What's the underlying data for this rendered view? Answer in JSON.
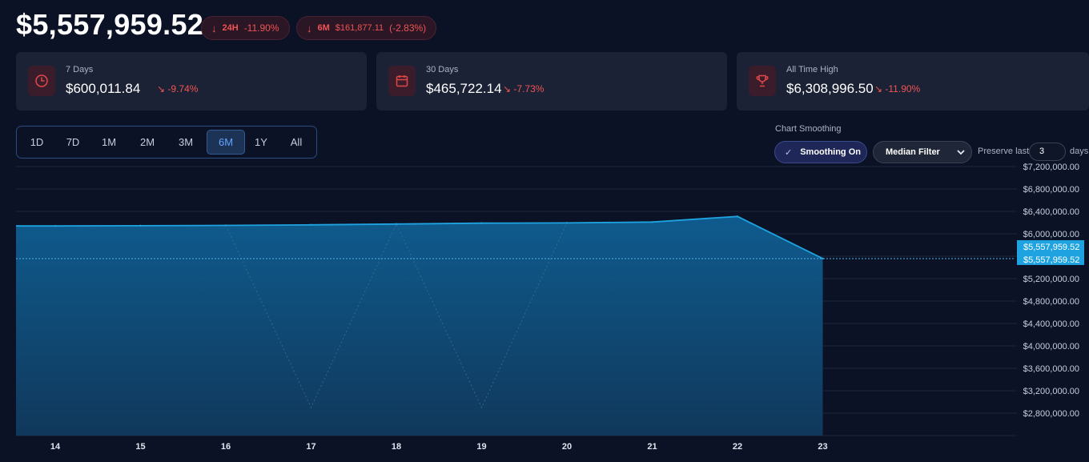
{
  "header": {
    "total_value": "$5,557,959.52",
    "pills": [
      {
        "arrow": "↓",
        "label": "24H",
        "amount": "",
        "change": "-11.90%"
      },
      {
        "arrow": "↓",
        "label": "6M",
        "amount": "$161,877.11",
        "change": "(-2.83%)"
      }
    ]
  },
  "cards": [
    {
      "title": "7 Days",
      "value": "$600,011.84",
      "trend": "↘",
      "change": "-9.74%",
      "icon": "clock-icon"
    },
    {
      "title": "30 Days",
      "value": "$465,722.14",
      "trend": "↘",
      "change": "-7.73%",
      "icon": "calendar-icon"
    },
    {
      "title": "All Time High",
      "value": "$6,308,996.50",
      "trend": "↘",
      "change": "-11.90%",
      "icon": "trophy-icon"
    }
  ],
  "ranges": {
    "options": [
      "1D",
      "7D",
      "1M",
      "2M",
      "3M",
      "6M",
      "1Y",
      "All"
    ],
    "active": "6M"
  },
  "smoothing": {
    "title": "Chart Smoothing",
    "toggle_check": "✓",
    "toggle_label": "Smoothing On",
    "filter": "Median Filter",
    "preserve_label": "Preserve last",
    "preserve_value": "3",
    "days_label": "days"
  },
  "colors": {
    "accent": "#1fa3e0",
    "negative": "#f05454",
    "active_range": "#63a3ff",
    "background": "#0b1225"
  },
  "chart_data": {
    "type": "area",
    "x": [
      "14",
      "15",
      "16",
      "17",
      "18",
      "19",
      "20",
      "21",
      "22",
      "23"
    ],
    "series": [
      {
        "values": [
          6140000,
          6145000,
          6150000,
          6160000,
          6175000,
          6190000,
          6195000,
          6210000,
          6310000,
          5557959.52
        ]
      },
      {
        "values": [
          null,
          null,
          6150000,
          2900000,
          6175000,
          2900000,
          6195000,
          null,
          null,
          null
        ]
      }
    ],
    "y_ticks": [
      "$7,200,000.00",
      "$6,800,000.00",
      "$6,400,000.00",
      "$6,000,000.00",
      "$5,600,000.00",
      "$5,200,000.00",
      "$4,800,000.00",
      "$4,400,000.00",
      "$4,000,000.00",
      "$3,600,000.00",
      "$3,200,000.00",
      "$2,800,000.00"
    ],
    "ylim": [
      2400000,
      7200000
    ],
    "current_labels": [
      "$5,557,959.52",
      "$5,557,959.52"
    ],
    "current_value": 5557959.52,
    "grid": true
  }
}
